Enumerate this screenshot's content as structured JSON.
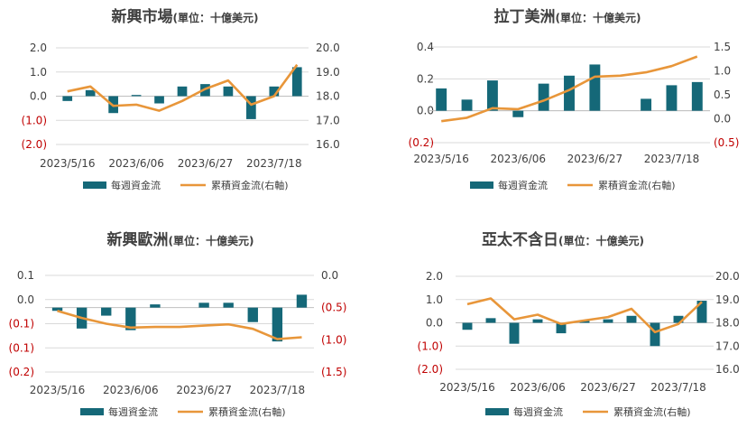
{
  "colors": {
    "bar": "#156878",
    "line": "#E8963A",
    "text": "#404040",
    "negative": "#C00000",
    "grid": "#D9D9D9",
    "axis": "#BFBFBF"
  },
  "legend": {
    "bar_label": "每週資金流",
    "line_label": "累積資金流(右軸)"
  },
  "x_labels": [
    "2023/5/16",
    "2023/6/06",
    "2023/6/27",
    "2023/7/18"
  ],
  "chart_data": [
    {
      "type": "bar+line",
      "title_main": "新興市場",
      "title_unit": "(單位：十億美元)",
      "left_ticks": [
        "2.0",
        "1.0",
        "0.0",
        "(1.0)",
        "(2.0)"
      ],
      "right_ticks": [
        "20.0",
        "19.0",
        "18.0",
        "17.0",
        "16.0"
      ],
      "left_range": [
        -2,
        2
      ],
      "right_range": [
        16,
        20
      ],
      "bars": [
        -0.2,
        0.25,
        -0.7,
        0.05,
        -0.3,
        0.4,
        0.5,
        0.4,
        -0.95,
        0.4,
        1.2
      ],
      "line": [
        18.2,
        18.4,
        17.6,
        17.65,
        17.4,
        17.8,
        18.3,
        18.65,
        17.65,
        18.0,
        19.3
      ]
    },
    {
      "type": "bar+line",
      "title_main": "拉丁美洲",
      "title_unit": "(單位：十億美元)",
      "left_ticks": [
        "0.4",
        "0.2",
        "0.0",
        "(0.2)"
      ],
      "right_ticks": [
        "1.5",
        "1.0",
        "0.5",
        "0.0",
        "(0.5)"
      ],
      "left_range": [
        -0.2,
        0.4
      ],
      "right_range": [
        -0.5,
        1.5
      ],
      "bars": [
        0.14,
        0.07,
        0.19,
        -0.04,
        0.17,
        0.22,
        0.29,
        0.0,
        0.075,
        0.16,
        0.18
      ],
      "line": [
        -0.05,
        0.02,
        0.22,
        0.2,
        0.38,
        0.6,
        0.88,
        0.9,
        0.97,
        1.1,
        1.3
      ]
    },
    {
      "type": "bar+line",
      "title_main": "新興歐洲",
      "title_unit": "(單位：十億美元)",
      "left_ticks": [
        "0.1",
        "0.0",
        "(0.1)",
        "(0.1)",
        "(0.2)"
      ],
      "right_ticks": [
        "0.0",
        "(0.5)",
        "(1.0)",
        "(1.5)"
      ],
      "left_range": [
        -0.2,
        0.1
      ],
      "right_range": [
        -1.5,
        0.0
      ],
      "bars": [
        -0.01,
        -0.065,
        -0.025,
        -0.07,
        0.01,
        0.0,
        0.015,
        0.015,
        -0.045,
        -0.105,
        0.04
      ],
      "line": [
        -0.55,
        -0.66,
        -0.75,
        -0.81,
        -0.8,
        -0.8,
        -0.78,
        -0.76,
        -0.83,
        -0.99,
        -0.96
      ]
    },
    {
      "type": "bar+line",
      "title_main": "亞太不含日",
      "title_unit": "(單位：十億美元)",
      "left_ticks": [
        "2.0",
        "1.0",
        "0.0",
        "(1.0)",
        "(2.0)"
      ],
      "right_ticks": [
        "20.0",
        "19.0",
        "18.0",
        "17.0",
        "16.0"
      ],
      "left_range": [
        -2,
        2
      ],
      "right_range": [
        16,
        20
      ],
      "bars": [
        -0.3,
        0.2,
        -0.9,
        0.15,
        -0.45,
        0.1,
        0.15,
        0.3,
        -1.0,
        0.3,
        0.95
      ],
      "line": [
        18.8,
        19.05,
        18.15,
        18.35,
        17.95,
        18.1,
        18.25,
        18.6,
        17.6,
        17.95,
        18.9
      ]
    }
  ]
}
